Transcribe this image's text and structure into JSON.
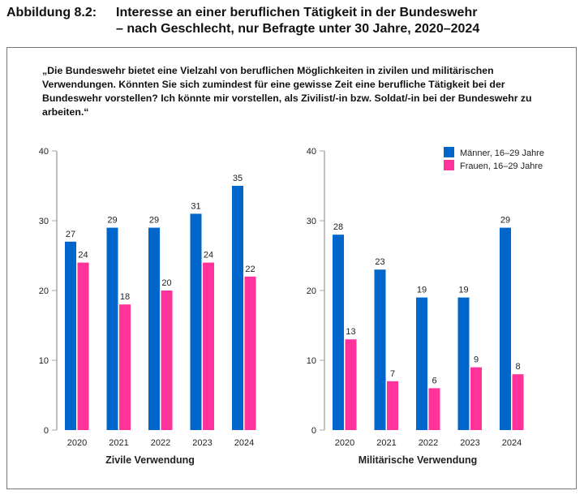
{
  "figure": {
    "label": "Abbildung 8.2:",
    "title": "Interesse an einer beruflichen Tätigkeit in der Bundeswehr – nach Geschlecht, nur Befragte unter 30 Jahre, 2020–2024"
  },
  "question": "„Die Bundeswehr bietet eine Vielzahl von beruflichen Möglichkeiten in zivilen und militärischen Verwendungen. Könnten Sie sich zumindest für eine gewisse Zeit eine berufliche Tätigkeit bei der Bundeswehr vorstellen? Ich könnte mir vorstellen, als Zivilist/-in bzw. Soldat/-in bei der Bundeswehr zu arbeiten.“",
  "colors": {
    "maenner": "#0066CC",
    "frauen": "#FF3399"
  },
  "legend": {
    "placement": "top-right",
    "items": [
      "Männer, 16–29 Jahre",
      "Frauen, 16–29 Jahre"
    ]
  },
  "chart_data": [
    {
      "type": "bar",
      "title": "Zivile Verwendung",
      "categories": [
        "2020",
        "2021",
        "2022",
        "2023",
        "2024"
      ],
      "ylim": [
        0,
        40
      ],
      "yticks": [
        "0",
        "10",
        "20",
        "30",
        "40"
      ],
      "grid": false,
      "series": [
        {
          "name": "Männer, 16–29 Jahre",
          "values": [
            27,
            29,
            29,
            31,
            35
          ]
        },
        {
          "name": "Frauen, 16–29 Jahre",
          "values": [
            24,
            18,
            20,
            24,
            22
          ]
        }
      ]
    },
    {
      "type": "bar",
      "title": "Militärische  Verwendung",
      "categories": [
        "2020",
        "2021",
        "2022",
        "2023",
        "2024"
      ],
      "ylim": [
        0,
        40
      ],
      "yticks": [
        "0",
        "10",
        "20",
        "30",
        "40"
      ],
      "grid": false,
      "series": [
        {
          "name": "Männer, 16–29 Jahre",
          "values": [
            28,
            23,
            19,
            19,
            29
          ]
        },
        {
          "name": "Frauen, 16–29 Jahre",
          "values": [
            13,
            7,
            6,
            9,
            8
          ]
        }
      ]
    }
  ]
}
